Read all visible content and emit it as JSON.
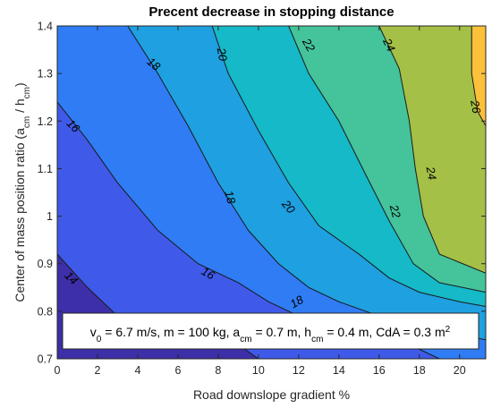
{
  "chart_data": {
    "type": "contour",
    "title": "Precent decrease in stopping distance",
    "xlabel": "Road downslope gradient %",
    "ylabel_parts": [
      "Center of mass position ratio (a",
      "cm",
      " / h",
      "cm",
      ")"
    ],
    "xlim": [
      0,
      21.3
    ],
    "ylim": [
      0.7,
      1.4
    ],
    "x_ticks": [
      0,
      2,
      4,
      6,
      8,
      10,
      12,
      14,
      16,
      18,
      20
    ],
    "y_ticks": [
      0.7,
      0.8,
      0.9,
      1,
      1.1,
      1.2,
      1.3,
      1.4
    ],
    "colormap": "parula",
    "levels": [
      {
        "min": 12,
        "max": 14,
        "color": "#3d2fa8"
      },
      {
        "min": 14,
        "max": 16,
        "color": "#3f5ae8"
      },
      {
        "min": 16,
        "max": 18,
        "color": "#2f7cf5"
      },
      {
        "min": 18,
        "max": 20,
        "color": "#1fa0e0"
      },
      {
        "min": 20,
        "max": 22,
        "color": "#15b9c7"
      },
      {
        "min": 22,
        "max": 24,
        "color": "#45c39b"
      },
      {
        "min": 24,
        "max": 26,
        "color": "#a5c046"
      },
      {
        "min": 26,
        "max": 28,
        "color": "#fcc13a"
      }
    ],
    "contours": [
      {
        "level": 14,
        "points": [
          [
            0,
            0.92
          ],
          [
            1.5,
            0.85
          ],
          [
            3,
            0.79
          ],
          [
            5,
            0.76
          ],
          [
            7,
            0.74
          ],
          [
            9,
            0.73
          ],
          [
            10,
            0.7
          ]
        ]
      },
      {
        "level": 16,
        "points": [
          [
            0,
            1.24
          ],
          [
            1.5,
            1.16
          ],
          [
            3,
            1.07
          ],
          [
            5,
            0.97
          ],
          [
            7,
            0.9
          ],
          [
            9,
            0.86
          ],
          [
            10.5,
            0.82
          ],
          [
            12,
            0.79
          ],
          [
            14,
            0.76
          ],
          [
            16,
            0.74
          ],
          [
            18,
            0.72
          ],
          [
            19,
            0.7
          ]
        ]
      },
      {
        "level": 18,
        "points": [
          [
            3.5,
            1.4
          ],
          [
            5,
            1.3
          ],
          [
            6.5,
            1.19
          ],
          [
            8,
            1.07
          ],
          [
            9.5,
            0.97
          ],
          [
            11,
            0.9
          ],
          [
            12.5,
            0.85
          ],
          [
            14,
            0.82
          ],
          [
            16,
            0.79
          ],
          [
            18,
            0.77
          ],
          [
            20,
            0.75
          ],
          [
            21.3,
            0.74
          ]
        ]
      },
      {
        "level": 20,
        "points": [
          [
            7.7,
            1.4
          ],
          [
            8.5,
            1.3
          ],
          [
            10,
            1.18
          ],
          [
            11.5,
            1.07
          ],
          [
            13,
            0.98
          ],
          [
            15,
            0.92
          ],
          [
            16.5,
            0.87
          ],
          [
            18,
            0.84
          ],
          [
            20,
            0.82
          ],
          [
            21.3,
            0.81
          ]
        ]
      },
      {
        "level": 22,
        "points": [
          [
            11.5,
            1.4
          ],
          [
            12.5,
            1.3
          ],
          [
            14,
            1.2
          ],
          [
            15.3,
            1.09
          ],
          [
            16.5,
            0.99
          ],
          [
            17.7,
            0.9
          ],
          [
            19,
            0.86
          ],
          [
            21.3,
            0.84
          ]
        ]
      },
      {
        "level": 24,
        "points": [
          [
            16,
            1.4
          ],
          [
            17,
            1.31
          ],
          [
            17.5,
            1.2
          ],
          [
            17.8,
            1.1
          ],
          [
            18.2,
            1.0
          ],
          [
            19,
            0.92
          ],
          [
            21.3,
            0.88
          ]
        ]
      },
      {
        "level": 26,
        "points": [
          [
            20.6,
            1.4
          ],
          [
            20.6,
            1.3
          ],
          [
            20.9,
            1.22
          ],
          [
            21.3,
            1.19
          ]
        ]
      }
    ],
    "contour_labels": [
      {
        "text": "14",
        "x": 0.7,
        "y": 0.87,
        "angle": 45
      },
      {
        "text": "16",
        "x": 0.8,
        "y": 1.19,
        "angle": 45
      },
      {
        "text": "16",
        "x": 7.5,
        "y": 0.88,
        "angle": 30
      },
      {
        "text": "18",
        "x": 4.8,
        "y": 1.32,
        "angle": 40
      },
      {
        "text": "18",
        "x": 8.6,
        "y": 1.04,
        "angle": 75
      },
      {
        "text": "18",
        "x": 11.9,
        "y": 0.82,
        "angle": -30
      },
      {
        "text": "20",
        "x": 8.2,
        "y": 1.34,
        "angle": 80
      },
      {
        "text": "20",
        "x": 11.5,
        "y": 1.02,
        "angle": 50
      },
      {
        "text": "22",
        "x": 12.5,
        "y": 1.36,
        "angle": 60
      },
      {
        "text": "22",
        "x": 16.8,
        "y": 1.01,
        "angle": 75
      },
      {
        "text": "24",
        "x": 16.5,
        "y": 1.36,
        "angle": 65
      },
      {
        "text": "24",
        "x": 18.6,
        "y": 1.09,
        "angle": 80
      },
      {
        "text": "26",
        "x": 20.8,
        "y": 1.23,
        "angle": 80
      }
    ],
    "annotation_parts": [
      {
        "t": "v",
        "sub": false
      },
      {
        "t": "0",
        "sub": true
      },
      {
        "t": " = 6.7 m/s, m = 100 kg, a",
        "sub": false
      },
      {
        "t": "cm",
        "sub": true
      },
      {
        "t": " = 0.7 m, h",
        "sub": false
      },
      {
        "t": "cm",
        "sub": true
      },
      {
        "t": " = 0.4 m, CdA = 0.3 m",
        "sub": false
      },
      {
        "t": "2",
        "sup": true
      }
    ]
  }
}
